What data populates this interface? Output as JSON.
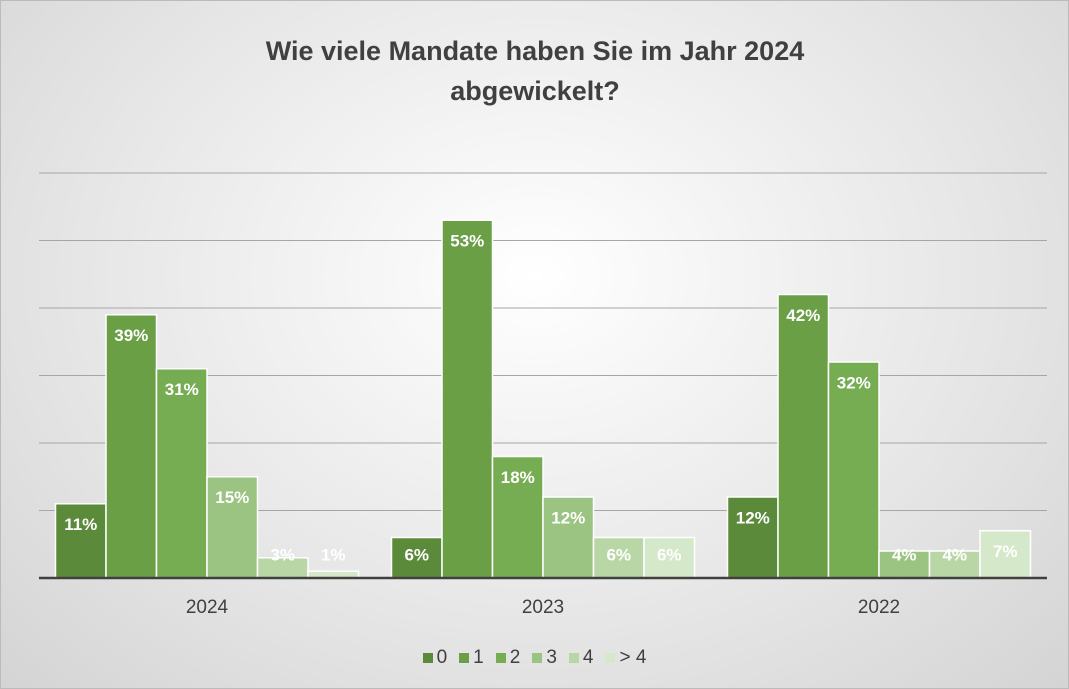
{
  "chart_data": {
    "type": "bar",
    "title": "Wie viele Mandate haben Sie im Jahr 2024 abgewickelt?",
    "categories": [
      "2024",
      "2023",
      "2022"
    ],
    "series": [
      {
        "name": "0",
        "color": "#5b8a3a",
        "values": [
          11,
          6,
          12
        ],
        "value_labels": [
          "11%",
          "6%",
          "12%"
        ]
      },
      {
        "name": "1",
        "color": "#6a9f46",
        "values": [
          39,
          53,
          42
        ],
        "value_labels": [
          "39%",
          "53%",
          "42%"
        ]
      },
      {
        "name": "2",
        "color": "#76ad52",
        "values": [
          31,
          18,
          32
        ],
        "value_labels": [
          "31%",
          "18%",
          "32%"
        ]
      },
      {
        "name": "3",
        "color": "#9bc381",
        "values": [
          15,
          12,
          4
        ],
        "value_labels": [
          "15%",
          "12%",
          "4%"
        ]
      },
      {
        "name": "4",
        "color": "#b9d7a6",
        "values": [
          3,
          6,
          4
        ],
        "value_labels": [
          "3%",
          "6%",
          "4%"
        ]
      },
      {
        "name": "> 4",
        "color": "#d5e8ca",
        "values": [
          1,
          6,
          7
        ],
        "value_labels": [
          "1%",
          "6%",
          "7%"
        ]
      }
    ],
    "ylim": [
      0,
      60
    ],
    "yticks": [
      0,
      10,
      20,
      30,
      40,
      50,
      60
    ],
    "grid": true,
    "legend": "bottom"
  }
}
